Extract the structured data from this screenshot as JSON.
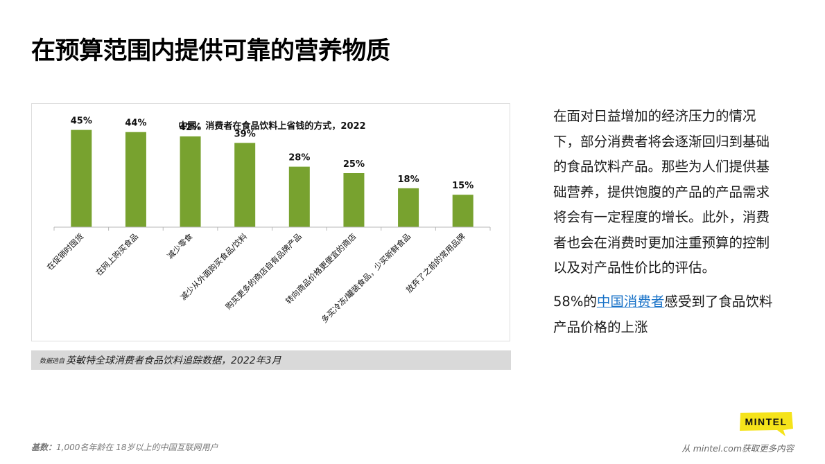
{
  "page": {
    "title": "在预算范围内提供可靠的营养物质"
  },
  "chart_data": {
    "type": "bar",
    "title": "中国：消费者在食品饮料上省钱的方式，2022",
    "categories": [
      "在促销时囤货",
      "在网上购买食品",
      "减少零食",
      "减少从外面购买食品/饮料",
      "购买更多的商店自有品牌产品",
      "转向商品价格更便宜的商店",
      "多买冷冻/罐装食品，少买新鲜食品",
      "放弃了之前的常用品牌"
    ],
    "values": [
      45,
      44,
      42,
      39,
      28,
      25,
      18,
      15
    ],
    "value_labels": [
      "45%",
      "44%",
      "42%",
      "39%",
      "28%",
      "25%",
      "18%",
      "15%"
    ],
    "unit": "%",
    "ylim": [
      0,
      50
    ],
    "grid": false,
    "legend": "none",
    "bar_color": "#78a22f"
  },
  "source": {
    "prefix": "数据选自",
    "text": "英敏特全球消费者食品饮料追踪数据，2022年3月"
  },
  "summary": {
    "text": "在面对日益增加的经济压力的情况下，部分消费者将会逐渐回归到基础的食品饮料产品。那些为人们提供基础营养，提供饱腹的产品的产品需求将会有一定程度的增长。此外，消费者也会在消费时更加注重预算的控制以及对产品性价比的评估。"
  },
  "stat": {
    "value": "58%的",
    "link": "中国消费者",
    "suffix": "感受到了食品饮料产品价格的上涨"
  },
  "footer": {
    "base_label": "基数：",
    "base_text": "1,000名年龄在 18岁以上的中国互联网用户",
    "more_link": "从 mintel.com获取更多内容"
  },
  "logo": {
    "text": "MINTEL",
    "color": "#f5e31a",
    "icon": "mintel-logo"
  }
}
